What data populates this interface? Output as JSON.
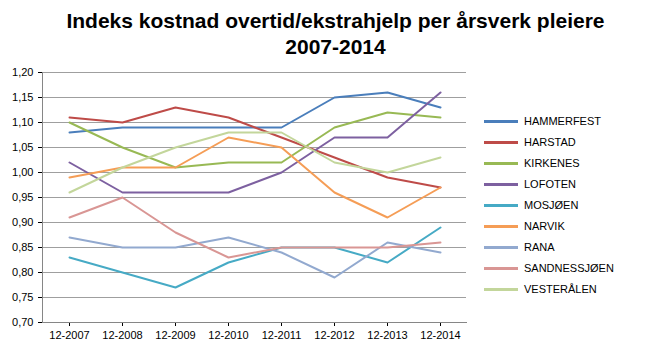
{
  "chart_data": {
    "type": "line",
    "title": "Indeks kostnad overtid/ekstrahjelp per årsverk pleiere 2007-2014",
    "categories": [
      "12-2007",
      "12-2008",
      "12-2009",
      "12-2010",
      "12-2011",
      "12-2012",
      "12-2013",
      "12-2014"
    ],
    "series": [
      {
        "name": "HAMMERFEST",
        "color": "#4a7ebb",
        "values": [
          1.08,
          1.09,
          1.09,
          1.09,
          1.09,
          1.15,
          1.16,
          1.13
        ]
      },
      {
        "name": "HARSTAD",
        "color": "#be4b48",
        "values": [
          1.11,
          1.1,
          1.13,
          1.11,
          1.07,
          1.03,
          0.99,
          0.97
        ]
      },
      {
        "name": "KIRKENES",
        "color": "#98b954",
        "values": [
          1.1,
          1.05,
          1.01,
          1.02,
          1.02,
          1.09,
          1.12,
          1.11
        ]
      },
      {
        "name": "LOFOTEN",
        "color": "#7d60a0",
        "values": [
          1.02,
          0.96,
          0.96,
          0.96,
          1.0,
          1.07,
          1.07,
          1.16
        ]
      },
      {
        "name": "MOSJØEN",
        "color": "#46aac5",
        "values": [
          0.83,
          0.8,
          0.77,
          0.82,
          0.85,
          0.85,
          0.82,
          0.89
        ]
      },
      {
        "name": "NARVIK",
        "color": "#f59d56",
        "values": [
          0.99,
          1.01,
          1.01,
          1.07,
          1.05,
          0.96,
          0.91,
          0.97
        ]
      },
      {
        "name": "RANA",
        "color": "#92a9cf",
        "values": [
          0.87,
          0.85,
          0.85,
          0.87,
          0.84,
          0.79,
          0.86,
          0.84
        ]
      },
      {
        "name": "SANDNESSJØEN",
        "color": "#d99694",
        "values": [
          0.91,
          0.95,
          0.88,
          0.83,
          0.85,
          0.85,
          0.85,
          0.86
        ]
      },
      {
        "name": "VESTERÅLEN",
        "color": "#c3d69b",
        "values": [
          0.96,
          1.01,
          1.05,
          1.08,
          1.08,
          1.02,
          1.0,
          1.03
        ]
      }
    ],
    "ylim": [
      0.7,
      1.2
    ],
    "yticks": [
      {
        "value": 0.7,
        "label": "0,70"
      },
      {
        "value": 0.75,
        "label": "0,75"
      },
      {
        "value": 0.8,
        "label": "0,80"
      },
      {
        "value": 0.85,
        "label": "0,85"
      },
      {
        "value": 0.9,
        "label": "0,90"
      },
      {
        "value": 0.95,
        "label": "0,95"
      },
      {
        "value": 1.0,
        "label": "1,00"
      },
      {
        "value": 1.05,
        "label": "1,05"
      },
      {
        "value": 1.1,
        "label": "1,10"
      },
      {
        "value": 1.15,
        "label": "1,15"
      },
      {
        "value": 1.2,
        "label": "1,20"
      }
    ],
    "grid": true,
    "legend": "right"
  }
}
